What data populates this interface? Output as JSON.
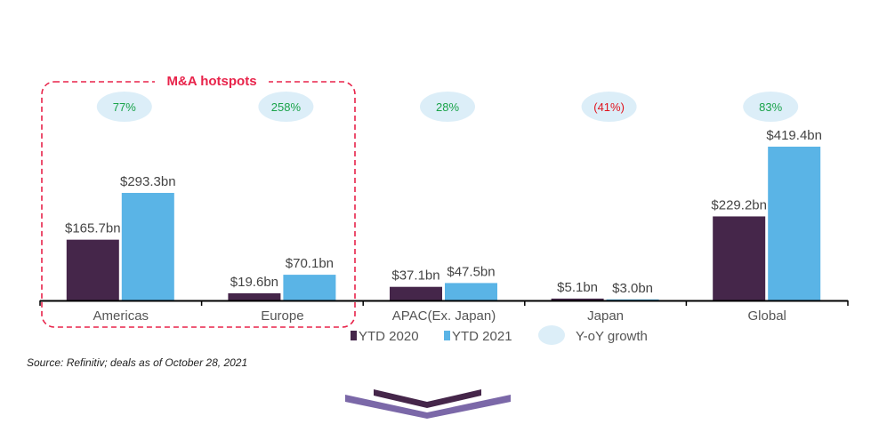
{
  "chart_data": {
    "type": "bar",
    "categories": [
      "Americas",
      "Europe",
      "APAC(Ex. Japan)",
      "Japan",
      "Global"
    ],
    "series": [
      {
        "name": "YTD 2020",
        "color": "#45264a",
        "values": [
          165.7,
          19.6,
          37.1,
          5.1,
          229.2
        ],
        "labels": [
          "$165.7bn",
          "$19.6bn",
          "$37.1bn",
          "$5.1bn",
          "$229.2bn"
        ]
      },
      {
        "name": "YTD 2021",
        "color": "#5ab4e6",
        "values": [
          293.3,
          70.1,
          47.5,
          3.0,
          419.4
        ],
        "labels": [
          "$293.3bn",
          "$70.1bn",
          "$47.5bn",
          "$3.0bn",
          "$419.4bn"
        ]
      }
    ],
    "growth": {
      "name": "Y-oY growth",
      "labels": [
        "77%",
        "258%",
        "28%",
        "(41%)",
        "83%"
      ],
      "colors": [
        "#1aa34a",
        "#1aa34a",
        "#1aa34a",
        "#e0141e",
        "#1aa34a"
      ],
      "bubble_color": "#dceef8"
    },
    "highlight": {
      "label": "M&A hotspots",
      "color": "#e8234a",
      "categories": [
        "Americas",
        "Europe"
      ]
    },
    "ylim": [
      0,
      450
    ],
    "legend_position": "bottom",
    "grid": false,
    "source": "Source: Refinitiv; deals as of October 28, 2021"
  }
}
